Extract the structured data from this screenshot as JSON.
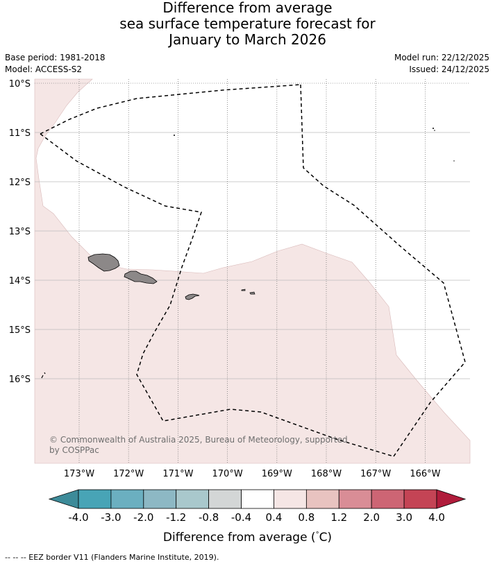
{
  "title": {
    "line1": "Difference from average",
    "line2": "sea surface temperature forecast for",
    "line3": "January to March 2026"
  },
  "meta": {
    "base_period": "Base period: 1981-2018",
    "model": "Model: ACCESS-S2",
    "model_run": "Model run: 22/12/2025",
    "issued": "Issued: 24/12/2025"
  },
  "map": {
    "lat_labels": [
      "10°S",
      "11°S",
      "12°S",
      "13°S",
      "14°S",
      "15°S",
      "16°S"
    ],
    "lat_values": [
      -10,
      -11,
      -12,
      -13,
      -14,
      -15,
      -16
    ],
    "lon_labels": [
      "173°W",
      "172°W",
      "171°W",
      "170°W",
      "169°W",
      "168°W",
      "167°W",
      "166°W"
    ],
    "lon_values": [
      -173,
      -172,
      -171,
      -170,
      -169,
      -168,
      -167,
      -166
    ],
    "copyright_line1": "© Commonwealth of Australia 2025, Bureau of Meteorology, supported",
    "copyright_line2": "by COSPPac",
    "anomaly_band": "0.4 to 0.8",
    "colors": {
      "warm_fill": "#f5e6e5",
      "land": "#8c8888",
      "eez": "#000000"
    }
  },
  "colorbar": {
    "labels": [
      "-4.0",
      "-3.0",
      "-2.0",
      "-1.2",
      "-0.8",
      "-0.4",
      "0.4",
      "0.8",
      "1.2",
      "2.0",
      "3.0",
      "4.0"
    ],
    "colors": [
      "#3d8b99",
      "#48a4b6",
      "#6bafc0",
      "#8db8c4",
      "#a9c8cc",
      "#d3d6d6",
      "#ffffff",
      "#f5e6e5",
      "#e8c3c0",
      "#d98d96",
      "#cd6574",
      "#c44455",
      "#b01c3b"
    ],
    "title": "Difference from average (",
    "title_unit": "C)",
    "title_degree": "°"
  },
  "footnote": "--  --  -- EEZ border V11 (Flanders Marine Institute, 2019)."
}
